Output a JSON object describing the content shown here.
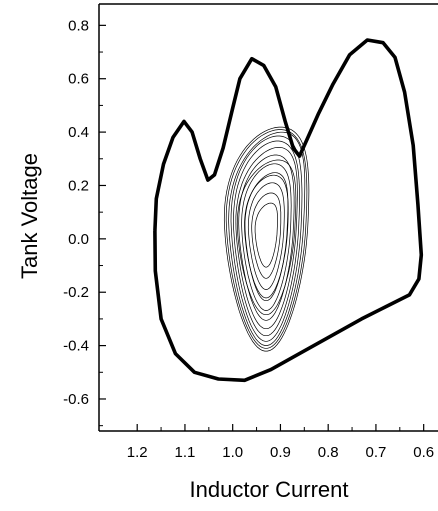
{
  "chart_data": {
    "type": "line",
    "title": "",
    "xlabel": "Inductor  Current",
    "ylabel": "Tank  Voltage",
    "x_reversed": true,
    "xlim": [
      1.28,
      0.57
    ],
    "ylim": [
      -0.72,
      0.88
    ],
    "x_ticks": [
      1.2,
      1.1,
      1.0,
      0.9,
      0.8,
      0.7,
      0.6
    ],
    "x_tick_labels": [
      "1.2",
      "1.1",
      "1.0",
      "0.9",
      "0.8",
      "0.7",
      "0.6"
    ],
    "y_ticks": [
      0.8,
      0.6,
      0.4,
      0.2,
      0.0,
      -0.2,
      -0.4,
      -0.6
    ],
    "y_tick_labels": [
      "0.8",
      "0.6",
      "0.4",
      "0.2",
      "0.0",
      "-0.2",
      "-0.4",
      "-0.6"
    ],
    "grid": false,
    "series": [
      {
        "style": "thick",
        "points": [
          [
            1.163,
            0.03
          ],
          [
            1.16,
            0.15
          ],
          [
            1.145,
            0.28
          ],
          [
            1.125,
            0.38
          ],
          [
            1.102,
            0.44
          ],
          [
            1.085,
            0.4
          ],
          [
            1.068,
            0.3
          ],
          [
            1.052,
            0.22
          ],
          [
            1.038,
            0.24
          ],
          [
            1.02,
            0.34
          ],
          [
            1.0,
            0.49
          ],
          [
            0.985,
            0.6
          ],
          [
            0.96,
            0.675
          ],
          [
            0.935,
            0.65
          ],
          [
            0.91,
            0.57
          ],
          [
            0.89,
            0.44
          ],
          [
            0.873,
            0.34
          ],
          [
            0.86,
            0.31
          ],
          [
            0.845,
            0.37
          ],
          [
            0.82,
            0.47
          ],
          [
            0.79,
            0.58
          ],
          [
            0.755,
            0.69
          ],
          [
            0.718,
            0.745
          ],
          [
            0.685,
            0.735
          ],
          [
            0.66,
            0.68
          ],
          [
            0.64,
            0.55
          ],
          [
            0.622,
            0.35
          ],
          [
            0.612,
            0.13
          ],
          [
            0.605,
            -0.06
          ],
          [
            0.61,
            -0.15
          ],
          [
            0.63,
            -0.21
          ],
          [
            0.68,
            -0.255
          ],
          [
            0.73,
            -0.3
          ],
          [
            0.8,
            -0.37
          ],
          [
            0.86,
            -0.43
          ],
          [
            0.92,
            -0.49
          ],
          [
            0.975,
            -0.53
          ],
          [
            1.03,
            -0.525
          ],
          [
            1.08,
            -0.5
          ],
          [
            1.12,
            -0.43
          ],
          [
            1.15,
            -0.3
          ],
          [
            1.162,
            -0.12
          ],
          [
            1.163,
            0.03
          ]
        ]
      },
      {
        "style": "thin",
        "name": "",
        "center": [
          0.93,
          0.02
        ],
        "orbits": [
          [
            0.023,
            0.12
          ],
          [
            0.03,
            0.16
          ],
          [
            0.037,
            0.2
          ],
          [
            0.044,
            0.24
          ],
          [
            0.051,
            0.275
          ],
          [
            0.057,
            0.31
          ],
          [
            0.063,
            0.34
          ],
          [
            0.068,
            0.365
          ],
          [
            0.073,
            0.385
          ],
          [
            0.078,
            0.4
          ],
          [
            0.083,
            0.41
          ],
          [
            0.087,
            0.42
          ],
          [
            0.06,
            0.29
          ],
          [
            0.045,
            0.23
          ]
        ]
      }
    ]
  }
}
